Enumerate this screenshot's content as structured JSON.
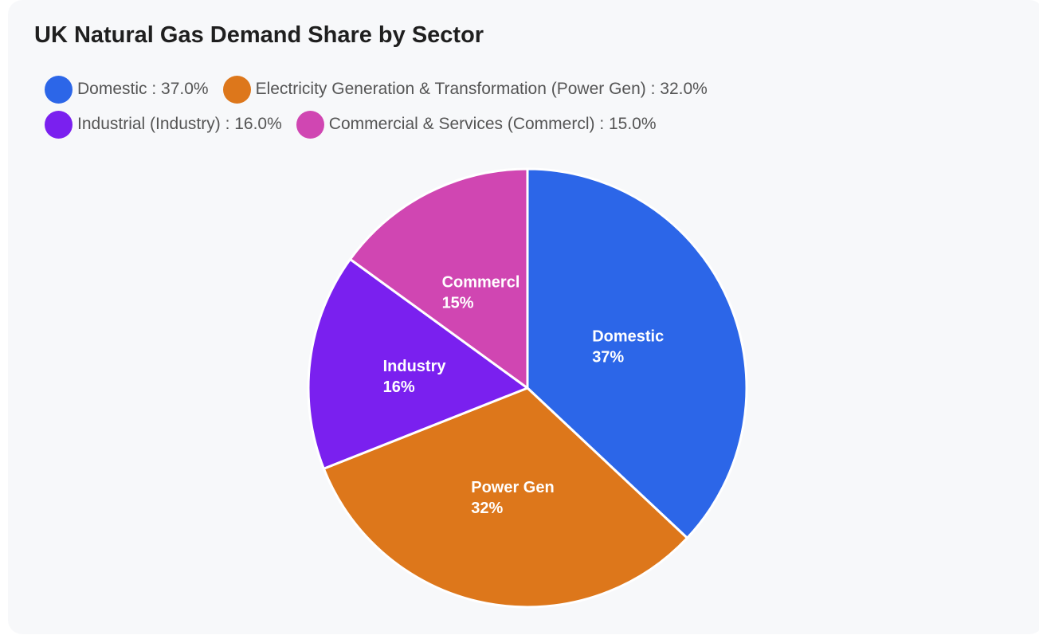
{
  "chart_data": {
    "type": "pie",
    "title": "UK Natural Gas Demand Share by Sector",
    "legend_position": "top-left",
    "slices": [
      {
        "legend": "Domestic : 37.0%",
        "short": "Domestic",
        "pct_label": "37%",
        "value": 37.0,
        "color": "#2c66e8"
      },
      {
        "legend": "Electricity Generation & Transformation (Power Gen) : 32.0%",
        "short": "Power Gen",
        "pct_label": "32%",
        "value": 32.0,
        "color": "#dd771b"
      },
      {
        "legend": "Industrial (Industry) : 16.0%",
        "short": "Industry",
        "pct_label": "16%",
        "value": 16.0,
        "color": "#7a20ef"
      },
      {
        "legend": "Commercial & Services (Commercl) : 15.0%",
        "short": "Commercl",
        "pct_label": "15%",
        "value": 15.0,
        "color": "#d046b2"
      }
    ]
  }
}
